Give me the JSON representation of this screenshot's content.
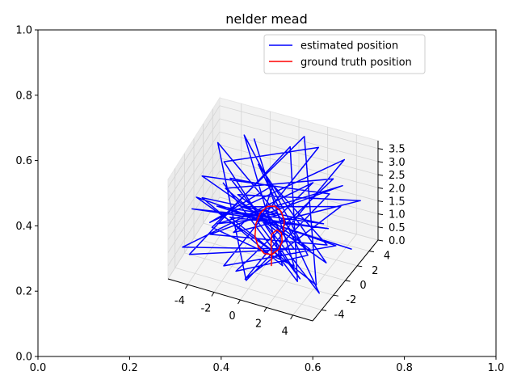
{
  "chart_data": {
    "type": "line",
    "title": "nelder mead",
    "projection": "3d",
    "outer_axes": {
      "x_ticks": [
        "0.0",
        "0.2",
        "0.4",
        "0.6",
        "0.8",
        "1.0"
      ],
      "y_ticks": [
        "0.0",
        "0.2",
        "0.4",
        "0.6",
        "0.8",
        "1.0"
      ],
      "xlim": [
        0,
        1
      ],
      "ylim": [
        0,
        1
      ]
    },
    "axes3d": {
      "x_ticks": [
        "-4",
        "-2",
        "0",
        "2",
        "4"
      ],
      "y_ticks": [
        "-4",
        "-2",
        "0",
        "2",
        "4"
      ],
      "z_ticks": [
        "0.0",
        "0.5",
        "1.0",
        "1.5",
        "2.0",
        "2.5",
        "3.0",
        "3.5"
      ],
      "xlim": [
        -5.5,
        5.5
      ],
      "ylim": [
        -5.5,
        5.5
      ],
      "zlim": [
        0,
        3.8
      ],
      "grid": true
    },
    "legend": {
      "placement": "upper-right",
      "entries": [
        {
          "label": "estimated position",
          "color": "#0000ff"
        },
        {
          "label": "ground truth position",
          "color": "#ff0000"
        }
      ]
    },
    "series": [
      {
        "name": "estimated position",
        "color": "#0000ff",
        "points": [
          [
            -2.8,
            4.6,
            2.9
          ],
          [
            3.1,
            -3.2,
            1.1
          ],
          [
            -4.6,
            1.2,
            0.2
          ],
          [
            0.6,
            4.9,
            3.4
          ],
          [
            4.1,
            -1.7,
            0.1
          ],
          [
            -1.3,
            -4.2,
            2.6
          ],
          [
            2.7,
            3.8,
            0.5
          ],
          [
            -4.9,
            -2.1,
            1.8
          ],
          [
            1.8,
            -4.7,
            3.2
          ],
          [
            -3.4,
            3.9,
            0.4
          ],
          [
            4.7,
            1.1,
            2.4
          ],
          [
            -0.4,
            -3.6,
            0.2
          ],
          [
            3.6,
            4.4,
            3.1
          ],
          [
            -4.2,
            -0.4,
            0.9
          ],
          [
            1.1,
            -2.2,
            3.6
          ],
          [
            -2.1,
            4.2,
            0.1
          ],
          [
            4.4,
            -4.1,
            2.2
          ],
          [
            -4.7,
            2.7,
            3.0
          ],
          [
            0.2,
            -4.9,
            0.6
          ],
          [
            2.4,
            4.8,
            1.5
          ],
          [
            -3.8,
            -3.1,
            3.5
          ],
          [
            3.9,
            0.5,
            0.3
          ],
          [
            -1.6,
            2.1,
            2.8
          ],
          [
            4.8,
            -2.8,
            0.2
          ],
          [
            -4.4,
            4.4,
            1.2
          ],
          [
            0.9,
            -1.4,
            3.3
          ],
          [
            2.9,
            3.1,
            0.1
          ],
          [
            -2.6,
            -4.7,
            1.9
          ],
          [
            4.2,
            2.6,
            2.7
          ],
          [
            -4.1,
            0.9,
            0.5
          ],
          [
            1.5,
            -3.9,
            2.9
          ],
          [
            -0.9,
            4.6,
            0.3
          ],
          [
            3.4,
            -0.6,
            3.6
          ],
          [
            -4.8,
            -4.4,
            1.0
          ],
          [
            2.2,
            1.8,
            0.2
          ],
          [
            -1.9,
            -1.1,
            2.5
          ],
          [
            4.6,
            4.7,
            1.6
          ],
          [
            -3.2,
            1.6,
            0.1
          ],
          [
            0.4,
            -4.3,
            3.0
          ],
          [
            3.2,
            -2.4,
            0.4
          ],
          [
            -4.5,
            3.4,
            2.1
          ],
          [
            1.9,
            4.1,
            3.4
          ],
          [
            -2.3,
            -2.8,
            0.2
          ],
          [
            4.9,
            -0.2,
            1.3
          ],
          [
            -3.6,
            -4.8,
            3.2
          ],
          [
            0.7,
            0.3,
            0.1
          ],
          [
            2.6,
            -4.5,
            2.6
          ],
          [
            -4.9,
            4.9,
            0.6
          ],
          [
            3.7,
            2.2,
            3.0
          ],
          [
            -1.2,
            -3.3,
            0.3
          ],
          [
            4.3,
            -3.6,
            1.8
          ],
          [
            -2.9,
            2.9,
            3.5
          ],
          [
            1.3,
            -0.9,
            0.2
          ],
          [
            -4.3,
            -1.7,
            2.2
          ],
          [
            2.1,
            4.5,
            0.4
          ],
          [
            -0.6,
            -4.9,
            3.1
          ],
          [
            4.5,
            3.4,
            0.1
          ],
          [
            -3.9,
            0.2,
            1.4
          ],
          [
            1.7,
            -3.1,
            2.8
          ],
          [
            -2.2,
            4.9,
            0.2
          ],
          [
            3.8,
            -4.8,
            2.3
          ],
          [
            -4.6,
            -3.5,
            0.5
          ],
          [
            0.1,
            3.6,
            3.3
          ],
          [
            2.8,
            -1.9,
            0.1
          ],
          [
            -3.1,
            -0.8,
            2.7
          ]
        ]
      },
      {
        "name": "ground truth position",
        "color": "#ff0000",
        "points": [
          [
            1.0,
            0.0,
            1.2
          ],
          [
            0.87,
            0.5,
            1.45
          ],
          [
            0.5,
            0.87,
            1.65
          ],
          [
            0.0,
            1.0,
            1.75
          ],
          [
            -0.5,
            0.87,
            1.7
          ],
          [
            -0.87,
            0.5,
            1.5
          ],
          [
            -1.0,
            0.0,
            1.2
          ],
          [
            -0.87,
            -0.5,
            0.9
          ],
          [
            -0.5,
            -0.87,
            0.65
          ],
          [
            0.0,
            -1.0,
            0.5
          ],
          [
            0.5,
            -0.87,
            0.5
          ],
          [
            0.87,
            -0.5,
            0.65
          ],
          [
            0.95,
            -0.1,
            0.85
          ],
          [
            0.7,
            0.4,
            1.0
          ],
          [
            0.3,
            0.6,
            1.0
          ],
          [
            0.0,
            0.4,
            0.85
          ],
          [
            0.1,
            0.0,
            0.6
          ],
          [
            0.3,
            -0.4,
            0.3
          ],
          [
            0.4,
            -0.7,
            0.0
          ]
        ]
      }
    ]
  }
}
